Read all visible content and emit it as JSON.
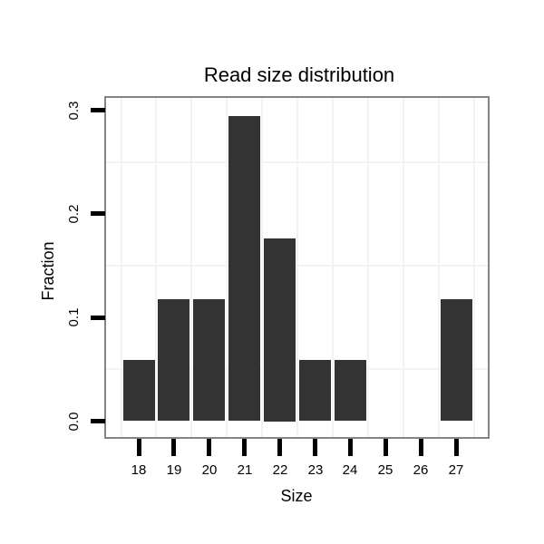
{
  "chart_data": {
    "type": "bar",
    "title": "Read size distribution",
    "xlabel": "Size",
    "ylabel": "Fraction",
    "categories": [
      18,
      19,
      20,
      21,
      22,
      23,
      24,
      25,
      26,
      27
    ],
    "values": [
      0.0588,
      0.1176,
      0.1176,
      0.2941,
      0.1765,
      0.0588,
      0.0588,
      0,
      0,
      0.1176
    ],
    "x_tick_labels": [
      "18",
      "19",
      "20",
      "21",
      "22",
      "23",
      "24",
      "25",
      "26",
      "27"
    ],
    "y_ticks": [
      {
        "label": "0.0",
        "value": 0.0
      },
      {
        "label": "0.1",
        "value": 0.1
      },
      {
        "label": "0.2",
        "value": 0.2
      },
      {
        "label": "0.3",
        "value": 0.3
      }
    ],
    "ylim": [
      -0.016,
      0.313
    ],
    "grid": {
      "major": "none",
      "minor_y": [
        0.05,
        0.15,
        0.25
      ],
      "minor_x": [
        17.5,
        18.5,
        19.5,
        20.5,
        21.5,
        22.5,
        23.5,
        24.5,
        25.5,
        26.5,
        27.5
      ]
    },
    "legend": null,
    "colors": {
      "bar": "#333333",
      "panel_border": "#848484",
      "gridline": "#f3f3f3",
      "text": "#000000",
      "background": "#ffffff"
    }
  }
}
